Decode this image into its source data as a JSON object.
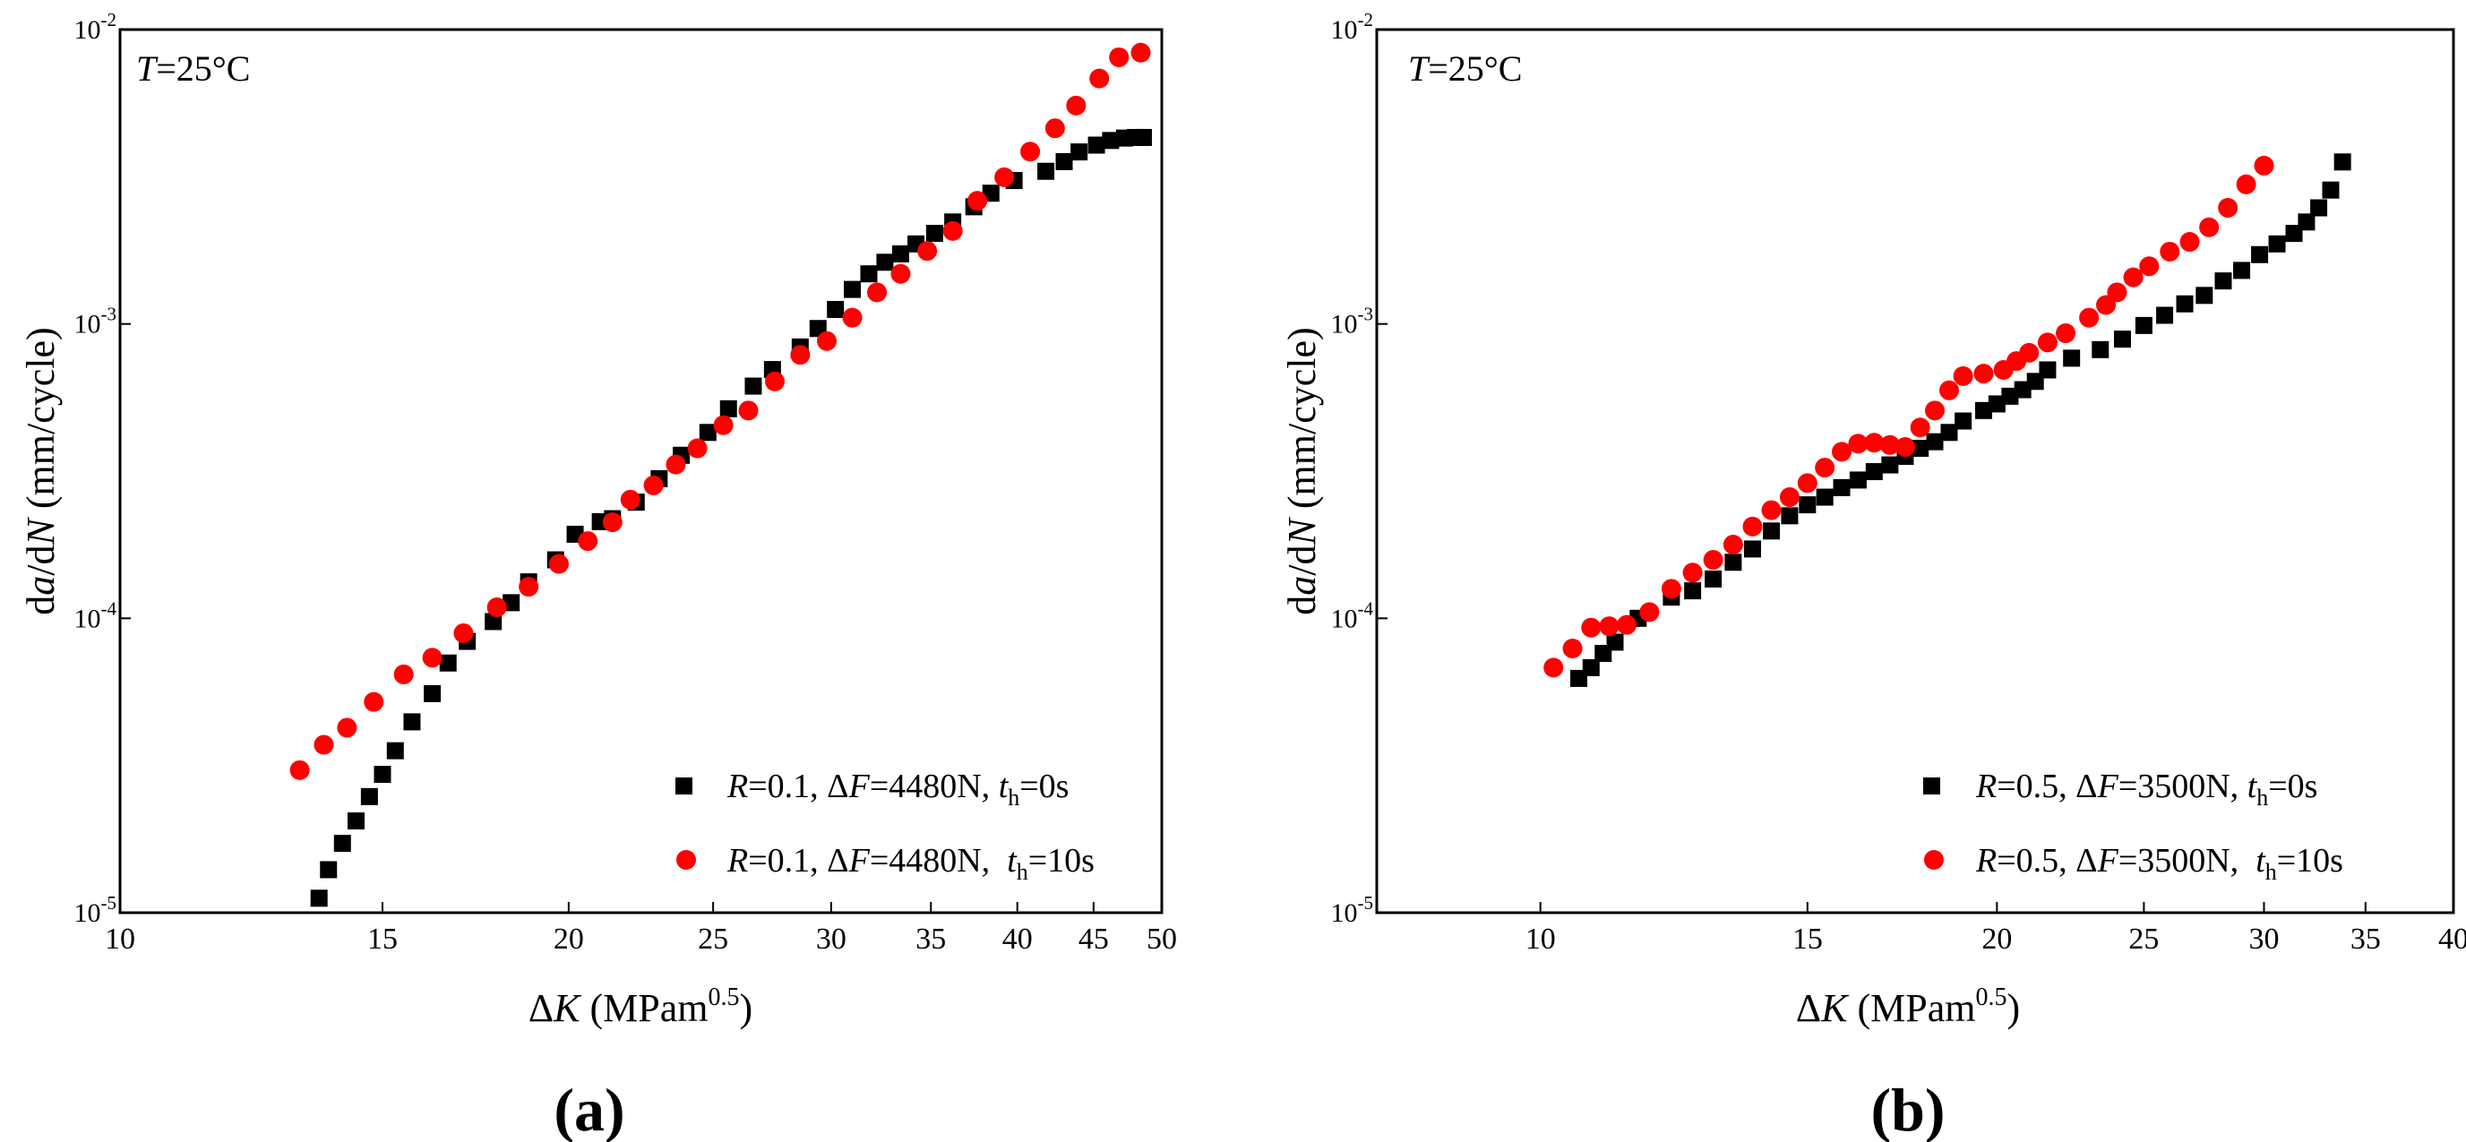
{
  "panels": [
    {
      "id": "a",
      "panel_label": "(a)",
      "temperature_label": {
        "var": "T",
        "rest": "=25°C"
      }
    },
    {
      "id": "b",
      "panel_label": "(b)",
      "temperature_label": {
        "var": "T",
        "rest": "=25°C"
      }
    }
  ],
  "colors": {
    "series_black": "#000000",
    "series_red": "#ff0000",
    "axis": "#000000"
  },
  "chart_data": [
    {
      "type": "scatter",
      "title": "",
      "xscale": "log",
      "yscale": "log",
      "xlabel": {
        "prefix": "Δ",
        "var": "K",
        "text": " (MPam",
        "sup": "0.5",
        "end": ")"
      },
      "ylabel": {
        "d1": "d",
        "var1": "a",
        "mid": "/d",
        "var2": "N",
        "end": " (mm/cycle)"
      },
      "xlim": [
        10,
        50
      ],
      "ylim": [
        1e-05,
        0.01
      ],
      "xticks": [
        10,
        15,
        20,
        25,
        30,
        35,
        40,
        45,
        50
      ],
      "xtick_labels": [
        "10",
        "15",
        "20",
        "25",
        "30",
        "35",
        "40",
        "45",
        "50"
      ],
      "yticks": [
        {
          "value": 1e-05,
          "base": "10",
          "exp": "-5"
        },
        {
          "value": 0.0001,
          "base": "10",
          "exp": "-4"
        },
        {
          "value": 0.001,
          "base": "10",
          "exp": "-3"
        },
        {
          "value": 0.01,
          "base": "10",
          "exp": "-2"
        }
      ],
      "legend_position": "lower-right",
      "series": [
        {
          "name": "R=0.1, ΔF=4480N, th=0s",
          "label": {
            "r": "R",
            "rv": "=0.1, Δ",
            "f": "F",
            "fv": "=4480N, ",
            "t": "t",
            "tsub": "h",
            "tv": "=0s"
          },
          "marker": "square",
          "color": "#000000",
          "x": [
            13.6,
            13.8,
            14.1,
            14.4,
            14.7,
            15.0,
            15.3,
            15.7,
            16.2,
            16.6,
            17.1,
            17.8,
            18.3,
            18.8,
            19.6,
            20.2,
            21.0,
            21.4,
            22.2,
            23.0,
            23.8,
            24.8,
            25.6,
            26.6,
            27.4,
            28.6,
            29.4,
            30.2,
            31.0,
            31.8,
            32.6,
            33.4,
            34.2,
            35.2,
            36.2,
            37.4,
            38.4,
            39.8,
            41.8,
            43.0,
            44.0,
            45.2,
            46.2,
            47.2,
            48.0,
            48.6
          ],
          "y": [
            1.12e-05,
            1.4e-05,
            1.72e-05,
            2.05e-05,
            2.48e-05,
            2.95e-05,
            3.55e-05,
            4.45e-05,
            5.55e-05,
            7.05e-05,
            8.35e-05,
            9.75e-05,
            0.000113,
            0.000133,
            0.000158,
            0.000193,
            0.000213,
            0.000218,
            0.000248,
            0.000298,
            0.000358,
            0.000428,
            0.000515,
            0.000615,
            0.0007,
            0.000835,
            0.000965,
            0.00112,
            0.00131,
            0.00148,
            0.00162,
            0.00173,
            0.00187,
            0.00203,
            0.00222,
            0.0025,
            0.00278,
            0.00307,
            0.0033,
            0.00356,
            0.00384,
            0.00405,
            0.0042,
            0.00428,
            0.0043,
            0.0043
          ]
        },
        {
          "name": "R=0.1, ΔF=4480N, th=10s",
          "label": {
            "r": "R",
            "rv": "=0.1, Δ",
            "f": "F",
            "fv": "=4480N,  ",
            "t": "t",
            "tsub": "h",
            "tv": "=10s"
          },
          "marker": "circle",
          "color": "#ff0000",
          "x": [
            13.2,
            13.7,
            14.2,
            14.8,
            15.5,
            16.2,
            17.0,
            17.9,
            18.8,
            19.7,
            20.6,
            21.4,
            22.0,
            22.8,
            23.6,
            24.4,
            25.4,
            26.4,
            27.5,
            28.6,
            29.8,
            31.0,
            32.2,
            33.4,
            34.8,
            36.2,
            37.6,
            39.2,
            40.8,
            42.4,
            43.8,
            45.4,
            46.8,
            48.4
          ],
          "y": [
            3.05e-05,
            3.72e-05,
            4.25e-05,
            5.2e-05,
            6.45e-05,
            7.35e-05,
            8.9e-05,
            0.000109,
            0.000128,
            0.000153,
            0.000183,
            0.000212,
            0.000253,
            0.000283,
            0.000333,
            0.000378,
            0.000453,
            0.000508,
            0.000638,
            0.000785,
            0.000875,
            0.00105,
            0.00128,
            0.00148,
            0.00177,
            0.00207,
            0.00262,
            0.00315,
            0.00385,
            0.00462,
            0.00552,
            0.00682,
            0.00805,
            0.00835
          ]
        }
      ]
    },
    {
      "type": "scatter",
      "title": "",
      "xscale": "log",
      "yscale": "log",
      "xlabel": {
        "prefix": "Δ",
        "var": "K",
        "text": " (MPam",
        "sup": "0.5",
        "end": ")"
      },
      "ylabel": {
        "d1": "d",
        "var1": "a",
        "mid": "/d",
        "var2": "N",
        "end": " (mm/cycle)"
      },
      "xlim": [
        7.8,
        40
      ],
      "ylim": [
        1e-05,
        0.01
      ],
      "xticks": [
        10,
        15,
        20,
        25,
        30,
        35,
        40
      ],
      "xtick_labels": [
        "10",
        "15",
        "20",
        "25",
        "30",
        "35",
        "40"
      ],
      "yticks": [
        {
          "value": 1e-05,
          "base": "10",
          "exp": "-5"
        },
        {
          "value": 0.0001,
          "base": "10",
          "exp": "-4"
        },
        {
          "value": 0.001,
          "base": "10",
          "exp": "-3"
        },
        {
          "value": 0.01,
          "base": "10",
          "exp": "-2"
        }
      ],
      "legend_position": "lower-right",
      "series": [
        {
          "name": "R=0.5, ΔF=3500N, th=0s",
          "label": {
            "r": "R",
            "rv": "=0.5, Δ",
            "f": "F",
            "fv": "=3500N, ",
            "t": "t",
            "tsub": "h",
            "tv": "=0s"
          },
          "marker": "square",
          "color": "#000000",
          "x": [
            10.6,
            10.8,
            11.0,
            11.2,
            11.6,
            12.2,
            12.6,
            13.0,
            13.4,
            13.8,
            14.2,
            14.6,
            15.0,
            15.4,
            15.8,
            16.2,
            16.6,
            17.0,
            17.4,
            17.8,
            18.2,
            18.6,
            19.0,
            19.6,
            20.0,
            20.4,
            20.8,
            21.2,
            21.6,
            22.4,
            23.4,
            24.2,
            25.0,
            25.8,
            26.6,
            27.4,
            28.2,
            29.0,
            29.8,
            30.6,
            31.4,
            32.0,
            32.6,
            33.2,
            33.8
          ],
          "y": [
            6.25e-05,
            6.8e-05,
            7.6e-05,
            8.3e-05,
            0.0001,
            0.000118,
            0.000124,
            0.000136,
            0.000155,
            0.000172,
            0.000198,
            0.000223,
            0.000243,
            0.000258,
            0.000278,
            0.000295,
            0.000315,
            0.000332,
            0.000355,
            0.000378,
            0.000398,
            0.000428,
            0.000468,
            0.000508,
            0.000535,
            0.000568,
            0.000598,
            0.000638,
            0.000698,
            0.000765,
            0.000818,
            0.000888,
            0.000988,
            0.00107,
            0.00117,
            0.00125,
            0.0014,
            0.00152,
            0.00172,
            0.00187,
            0.00203,
            0.00222,
            0.00248,
            0.00285,
            0.00355
          ]
        },
        {
          "name": "R=0.5, ΔF=3500N, th=10s",
          "label": {
            "r": "R",
            "rv": "=0.5, Δ",
            "f": "F",
            "fv": "=3500N,  ",
            "t": "t",
            "tsub": "h",
            "tv": "=10s"
          },
          "marker": "circle",
          "color": "#ff0000",
          "x": [
            10.2,
            10.5,
            10.8,
            11.1,
            11.4,
            11.8,
            12.2,
            12.6,
            13.0,
            13.4,
            13.8,
            14.2,
            14.6,
            15.0,
            15.4,
            15.8,
            16.2,
            16.6,
            17.0,
            17.4,
            17.8,
            18.2,
            18.6,
            19.0,
            19.6,
            20.2,
            20.6,
            21.0,
            21.6,
            22.2,
            23.0,
            23.6,
            24.0,
            24.6,
            25.2,
            26.0,
            26.8,
            27.6,
            28.4,
            29.2,
            30.0
          ],
          "y": [
            6.8e-05,
            7.9e-05,
            9.3e-05,
            9.4e-05,
            9.5e-05,
            0.000105,
            0.000126,
            0.000143,
            0.000158,
            0.000178,
            0.000205,
            0.000233,
            0.000258,
            0.000288,
            0.000325,
            0.000368,
            0.000392,
            0.000395,
            0.000388,
            0.000382,
            0.000445,
            0.000508,
            0.000595,
            0.000665,
            0.000678,
            0.000698,
            0.000748,
            0.000798,
            0.000865,
            0.00093,
            0.00105,
            0.00116,
            0.00128,
            0.00144,
            0.00157,
            0.00176,
            0.0019,
            0.00213,
            0.00248,
            0.00298,
            0.00345
          ]
        }
      ]
    }
  ]
}
